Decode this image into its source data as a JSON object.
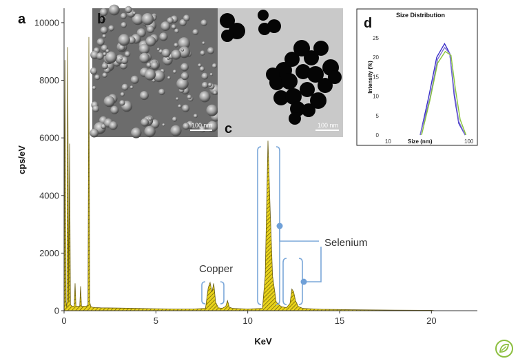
{
  "chart_data": [
    {
      "type": "area",
      "panel_label": "a",
      "title": "",
      "xlabel": "KeV",
      "ylabel": "cps/eV",
      "xlim": [
        0,
        22.5
      ],
      "ylim": [
        0,
        10500
      ],
      "xticks": [
        0,
        5,
        10,
        15,
        20
      ],
      "yticks": [
        0,
        2000,
        4000,
        6000,
        8000,
        10000
      ],
      "series": [
        {
          "color": "#e8d21a",
          "x": [
            0.0,
            0.05,
            0.1,
            0.15,
            0.2,
            0.25,
            0.3,
            0.35,
            0.45,
            0.55,
            0.6,
            0.65,
            0.75,
            0.85,
            0.9,
            0.95,
            1.05,
            1.2,
            1.3,
            1.35,
            1.4,
            1.45,
            1.55,
            1.7,
            2.0,
            3.0,
            4.0,
            5.0,
            6.0,
            7.0,
            7.7,
            7.85,
            7.95,
            8.05,
            8.15,
            8.25,
            8.4,
            8.6,
            8.8,
            8.9,
            9.0,
            9.2,
            10.0,
            10.8,
            10.95,
            11.1,
            11.22,
            11.35,
            11.55,
            11.8,
            12.1,
            12.3,
            12.4,
            12.5,
            12.6,
            12.75,
            13.0,
            14.0,
            16.0,
            18.0,
            20.0,
            20.2
          ],
          "y": [
            0,
            8700,
            300,
            100,
            9150,
            300,
            5800,
            200,
            150,
            150,
            950,
            150,
            150,
            150,
            850,
            150,
            150,
            150,
            200,
            9500,
            300,
            150,
            120,
            110,
            100,
            90,
            80,
            70,
            60,
            60,
            80,
            800,
            980,
            650,
            950,
            300,
            100,
            80,
            150,
            350,
            120,
            80,
            60,
            80,
            1200,
            5900,
            3500,
            1200,
            300,
            150,
            100,
            250,
            750,
            650,
            350,
            150,
            80,
            50,
            30,
            20,
            15,
            0
          ]
        }
      ],
      "annotations": [
        "Copper",
        "Selenium"
      ]
    },
    {
      "type": "line",
      "panel_label": "d",
      "title": "Size Distribution",
      "xlabel": "Size (nm)",
      "ylabel": "Intensity (%)",
      "xscale": "log",
      "xlim": [
        5,
        120
      ],
      "ylim": [
        0,
        28
      ],
      "xticks": [
        10,
        100
      ],
      "yticks": [
        0,
        5,
        10,
        15,
        20,
        25
      ],
      "series": [
        {
          "color": "#3a2fc9",
          "x": [
            25,
            32,
            40,
            50,
            58,
            66,
            75,
            90
          ],
          "y": [
            0,
            10,
            20,
            23.5,
            21,
            10,
            3,
            0
          ]
        },
        {
          "color": "#7b6fd1",
          "x": [
            25,
            33,
            41,
            50,
            58,
            66,
            75,
            90
          ],
          "y": [
            0,
            9.5,
            19.5,
            22.5,
            21,
            11,
            3.5,
            0
          ]
        },
        {
          "color": "#89c53b",
          "x": [
            26,
            33,
            41,
            51,
            60,
            68,
            78,
            92
          ],
          "y": [
            0,
            9,
            18.5,
            21.5,
            20.5,
            12,
            4,
            0
          ]
        }
      ]
    }
  ],
  "images": [
    {
      "panel_label": "b",
      "scalebar": "100 nm"
    },
    {
      "panel_label": "c",
      "scalebar": "100 nm"
    }
  ],
  "logo": {
    "name": "leaf-logo-icon",
    "color": "#8cbf3f"
  }
}
